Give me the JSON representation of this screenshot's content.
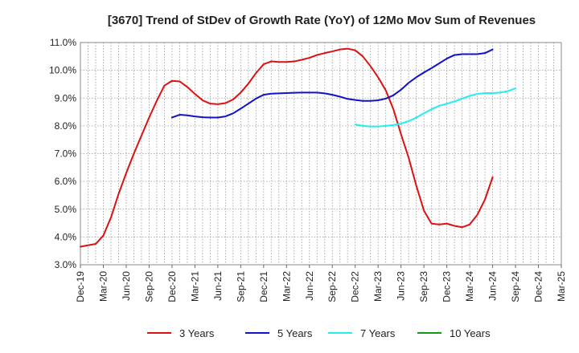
{
  "chart_data": {
    "type": "line",
    "title": "[3670]  Trend of StDev of Growth Rate (YoY) of 12Mo Mov Sum of Revenues",
    "xlabel": "",
    "ylabel": "",
    "ylim": [
      3.0,
      11.0
    ],
    "yticks": [
      3.0,
      4.0,
      5.0,
      6.0,
      7.0,
      8.0,
      9.0,
      10.0,
      11.0
    ],
    "ytick_labels": [
      "3.0%",
      "4.0%",
      "5.0%",
      "6.0%",
      "7.0%",
      "8.0%",
      "9.0%",
      "10.0%",
      "11.0%"
    ],
    "x_start": "Dec-19",
    "x_months": 63,
    "xtick_labels": [
      "Dec-19",
      "Mar-20",
      "Jun-20",
      "Sep-20",
      "Dec-20",
      "Mar-21",
      "Jun-21",
      "Sep-21",
      "Dec-21",
      "Mar-22",
      "Jun-22",
      "Sep-22",
      "Dec-22",
      "Mar-23",
      "Jun-23",
      "Sep-23",
      "Dec-23",
      "Mar-24",
      "Jun-24",
      "Sep-24",
      "Dec-24",
      "Mar-25"
    ],
    "grid": true,
    "legend_position": "bottom",
    "series": [
      {
        "name": "3 Years",
        "color": "#dd1111",
        "start_index": 0,
        "values": [
          3.65,
          3.7,
          3.75,
          4.05,
          4.7,
          5.55,
          6.3,
          7.0,
          7.65,
          8.3,
          8.9,
          9.45,
          9.62,
          9.6,
          9.4,
          9.15,
          8.92,
          8.8,
          8.78,
          8.82,
          8.95,
          9.2,
          9.52,
          9.9,
          10.22,
          10.32,
          10.3,
          10.3,
          10.32,
          10.38,
          10.45,
          10.55,
          10.62,
          10.68,
          10.75,
          10.78,
          10.72,
          10.5,
          10.15,
          9.75,
          9.28,
          8.6,
          7.7,
          6.85,
          5.85,
          4.95,
          4.48,
          4.45,
          4.48,
          4.4,
          4.35,
          4.45,
          4.8,
          5.35,
          6.15
        ]
      },
      {
        "name": "5 Years",
        "color": "#1111cc",
        "start_index": 12,
        "values": [
          8.3,
          8.4,
          8.38,
          8.34,
          8.31,
          8.3,
          8.3,
          8.34,
          8.45,
          8.62,
          8.8,
          8.98,
          9.12,
          9.16,
          9.17,
          9.18,
          9.19,
          9.2,
          9.2,
          9.2,
          9.17,
          9.12,
          9.05,
          8.97,
          8.93,
          8.9,
          8.9,
          8.92,
          8.98,
          9.1,
          9.3,
          9.55,
          9.75,
          9.92,
          10.08,
          10.25,
          10.42,
          10.55,
          10.58,
          10.58,
          10.58,
          10.62,
          10.75
        ]
      },
      {
        "name": "7 Years",
        "color": "#22eeee",
        "start_index": 36,
        "values": [
          8.05,
          8.0,
          7.98,
          7.98,
          8.0,
          8.03,
          8.08,
          8.17,
          8.3,
          8.45,
          8.6,
          8.72,
          8.8,
          8.88,
          8.98,
          9.08,
          9.15,
          9.18,
          9.18,
          9.2,
          9.25,
          9.35
        ]
      },
      {
        "name": "10 Years",
        "color": "#119911",
        "start_index": 0,
        "values": []
      }
    ]
  }
}
